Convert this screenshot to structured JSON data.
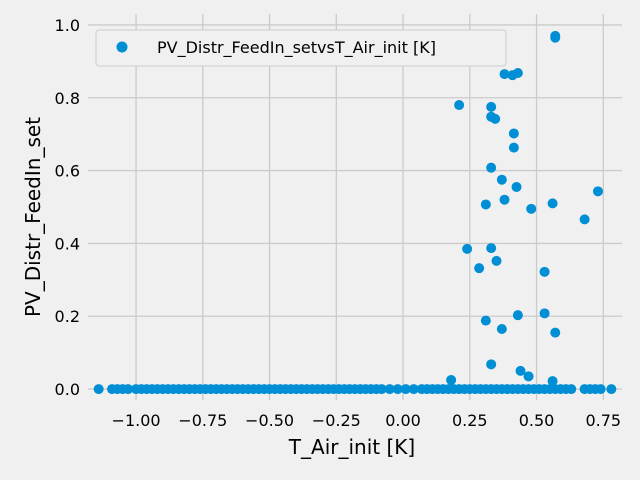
{
  "chart_data": {
    "type": "scatter",
    "xlabel": "T_Air_init [K]",
    "ylabel": "PV_Distr_FeedIn_set",
    "xlim": [
      -1.18,
      0.82
    ],
    "ylim": [
      -0.03,
      1.03
    ],
    "xticks": [
      -1.0,
      -0.75,
      -0.5,
      -0.25,
      0.0,
      0.25,
      0.5,
      0.75
    ],
    "xtick_labels": [
      "−1.00",
      "−0.75",
      "−0.50",
      "−0.25",
      "0.00",
      "0.25",
      "0.50",
      "0.75"
    ],
    "yticks": [
      0.0,
      0.2,
      0.4,
      0.6,
      0.8,
      1.0
    ],
    "ytick_labels": [
      "0.0",
      "0.2",
      "0.4",
      "0.6",
      "0.8",
      "1.0"
    ],
    "grid": true,
    "legend": {
      "position": "top-left",
      "entries": [
        "PV_Distr_FeedIn_setvsT_Air_init [K]"
      ]
    },
    "series": [
      {
        "name": "PV_Distr_FeedIn_setvsT_Air_init [K]",
        "color": "#008fd5",
        "marker": "circle",
        "points": [
          [
            0.21,
            0.78
          ],
          [
            0.33,
            0.775
          ],
          [
            0.33,
            0.748
          ],
          [
            0.345,
            0.742
          ],
          [
            0.38,
            0.865
          ],
          [
            0.41,
            0.862
          ],
          [
            0.43,
            0.868
          ],
          [
            0.57,
            0.97
          ],
          [
            0.57,
            0.965
          ],
          [
            0.415,
            0.702
          ],
          [
            0.415,
            0.663
          ],
          [
            0.33,
            0.608
          ],
          [
            0.37,
            0.575
          ],
          [
            0.425,
            0.555
          ],
          [
            0.38,
            0.52
          ],
          [
            0.31,
            0.507
          ],
          [
            0.48,
            0.495
          ],
          [
            0.56,
            0.51
          ],
          [
            0.73,
            0.543
          ],
          [
            0.68,
            0.466
          ],
          [
            0.24,
            0.385
          ],
          [
            0.33,
            0.387
          ],
          [
            0.35,
            0.352
          ],
          [
            0.285,
            0.332
          ],
          [
            0.53,
            0.322
          ],
          [
            0.31,
            0.188
          ],
          [
            0.37,
            0.165
          ],
          [
            0.43,
            0.203
          ],
          [
            0.53,
            0.208
          ],
          [
            0.57,
            0.155
          ],
          [
            0.33,
            0.068
          ],
          [
            0.44,
            0.05
          ],
          [
            0.47,
            0.035
          ],
          [
            0.18,
            0.025
          ],
          [
            0.56,
            0.022
          ],
          [
            -1.14,
            0
          ],
          [
            -1.09,
            0
          ],
          [
            -1.07,
            0
          ],
          [
            -1.05,
            0
          ],
          [
            -1.03,
            0
          ],
          [
            -1.0,
            0
          ],
          [
            -0.98,
            0
          ],
          [
            -0.96,
            0
          ],
          [
            -0.94,
            0
          ],
          [
            -0.92,
            0
          ],
          [
            -0.9,
            0
          ],
          [
            -0.88,
            0
          ],
          [
            -0.86,
            0
          ],
          [
            -0.84,
            0
          ],
          [
            -0.82,
            0
          ],
          [
            -0.8,
            0
          ],
          [
            -0.78,
            0
          ],
          [
            -0.76,
            0
          ],
          [
            -0.74,
            0
          ],
          [
            -0.72,
            0
          ],
          [
            -0.7,
            0
          ],
          [
            -0.68,
            0
          ],
          [
            -0.66,
            0
          ],
          [
            -0.64,
            0
          ],
          [
            -0.62,
            0
          ],
          [
            -0.6,
            0
          ],
          [
            -0.58,
            0
          ],
          [
            -0.56,
            0
          ],
          [
            -0.54,
            0
          ],
          [
            -0.52,
            0
          ],
          [
            -0.5,
            0
          ],
          [
            -0.48,
            0
          ],
          [
            -0.46,
            0
          ],
          [
            -0.44,
            0
          ],
          [
            -0.42,
            0
          ],
          [
            -0.4,
            0
          ],
          [
            -0.38,
            0
          ],
          [
            -0.36,
            0
          ],
          [
            -0.34,
            0
          ],
          [
            -0.32,
            0
          ],
          [
            -0.3,
            0
          ],
          [
            -0.28,
            0
          ],
          [
            -0.26,
            0
          ],
          [
            -0.24,
            0
          ],
          [
            -0.22,
            0
          ],
          [
            -0.2,
            0
          ],
          [
            -0.18,
            0
          ],
          [
            -0.16,
            0
          ],
          [
            -0.14,
            0
          ],
          [
            -0.12,
            0
          ],
          [
            -0.1,
            0
          ],
          [
            -0.08,
            0
          ],
          [
            -0.05,
            0
          ],
          [
            -0.02,
            0
          ],
          [
            0.01,
            0
          ],
          [
            0.04,
            0
          ],
          [
            0.07,
            0
          ],
          [
            0.09,
            0
          ],
          [
            0.11,
            0
          ],
          [
            0.13,
            0
          ],
          [
            0.15,
            0
          ],
          [
            0.17,
            0
          ],
          [
            0.19,
            0
          ],
          [
            0.21,
            0
          ],
          [
            0.23,
            0
          ],
          [
            0.25,
            0
          ],
          [
            0.27,
            0
          ],
          [
            0.29,
            0
          ],
          [
            0.31,
            0
          ],
          [
            0.33,
            0
          ],
          [
            0.35,
            0
          ],
          [
            0.37,
            0
          ],
          [
            0.39,
            0
          ],
          [
            0.41,
            0
          ],
          [
            0.43,
            0
          ],
          [
            0.45,
            0
          ],
          [
            0.47,
            0
          ],
          [
            0.49,
            0
          ],
          [
            0.51,
            0
          ],
          [
            0.53,
            0
          ],
          [
            0.55,
            0
          ],
          [
            0.57,
            0
          ],
          [
            0.59,
            0
          ],
          [
            0.61,
            0
          ],
          [
            0.63,
            0
          ],
          [
            0.68,
            0
          ],
          [
            0.7,
            0
          ],
          [
            0.72,
            0
          ],
          [
            0.74,
            0
          ],
          [
            0.78,
            0
          ]
        ]
      }
    ]
  }
}
